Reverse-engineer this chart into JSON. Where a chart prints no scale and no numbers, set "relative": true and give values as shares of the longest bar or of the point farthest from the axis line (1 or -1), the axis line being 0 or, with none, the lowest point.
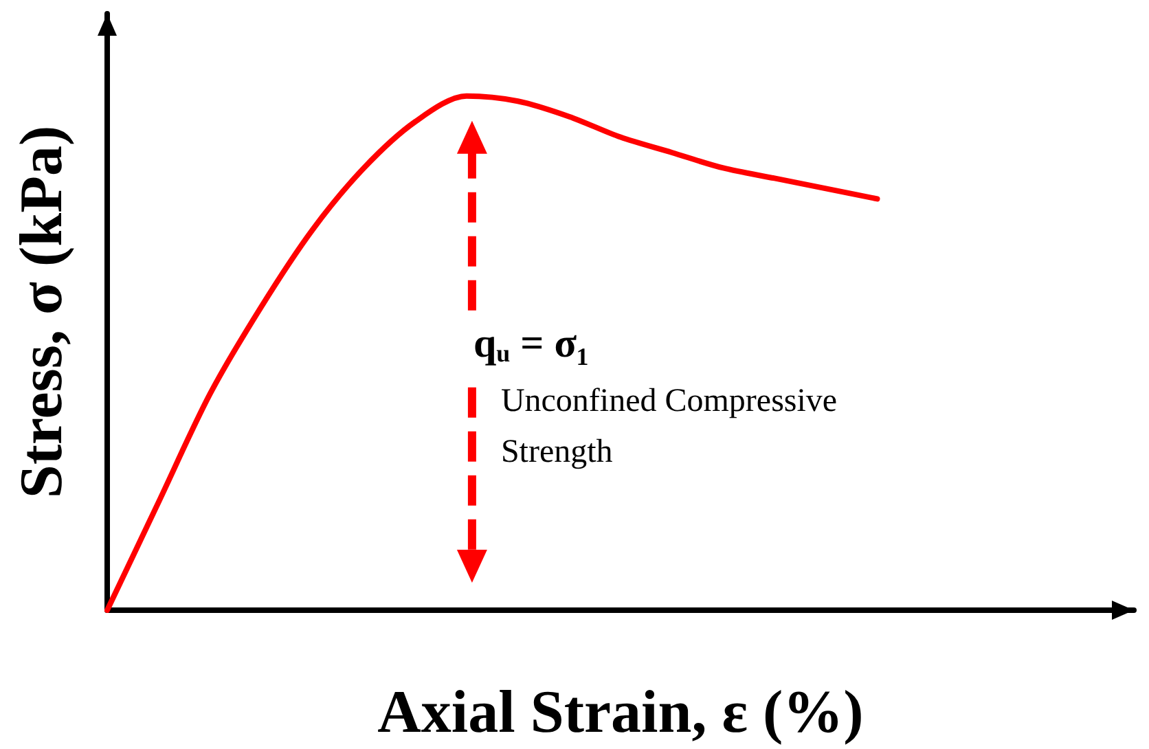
{
  "chart_data": {
    "type": "line",
    "relative": true,
    "xlabel": "Axial Strain, ε (%)",
    "ylabel": "Stress, σ (kPa)",
    "categories": [
      null,
      null,
      null,
      null,
      null,
      null,
      null,
      null,
      null,
      null,
      null,
      null,
      null,
      null,
      null,
      null,
      null,
      null,
      null,
      null,
      null
    ],
    "series": [
      {
        "color": "#ff0000",
        "values": [
          0,
          0.21,
          0.42,
          0.59,
          0.74,
          0.86,
          0.95,
          1.0,
          0.99,
          0.96,
          0.92,
          0.89,
          0.86,
          0.84,
          0.82,
          0.8,
          null,
          null,
          null,
          null,
          null
        ]
      }
    ],
    "annotations": [
      "q$_{u}$ = σ₁",
      "Unconfined Compressive",
      "Strength"
    ],
    "marker": "none",
    "line_style": "solid",
    "grid": false
  }
}
